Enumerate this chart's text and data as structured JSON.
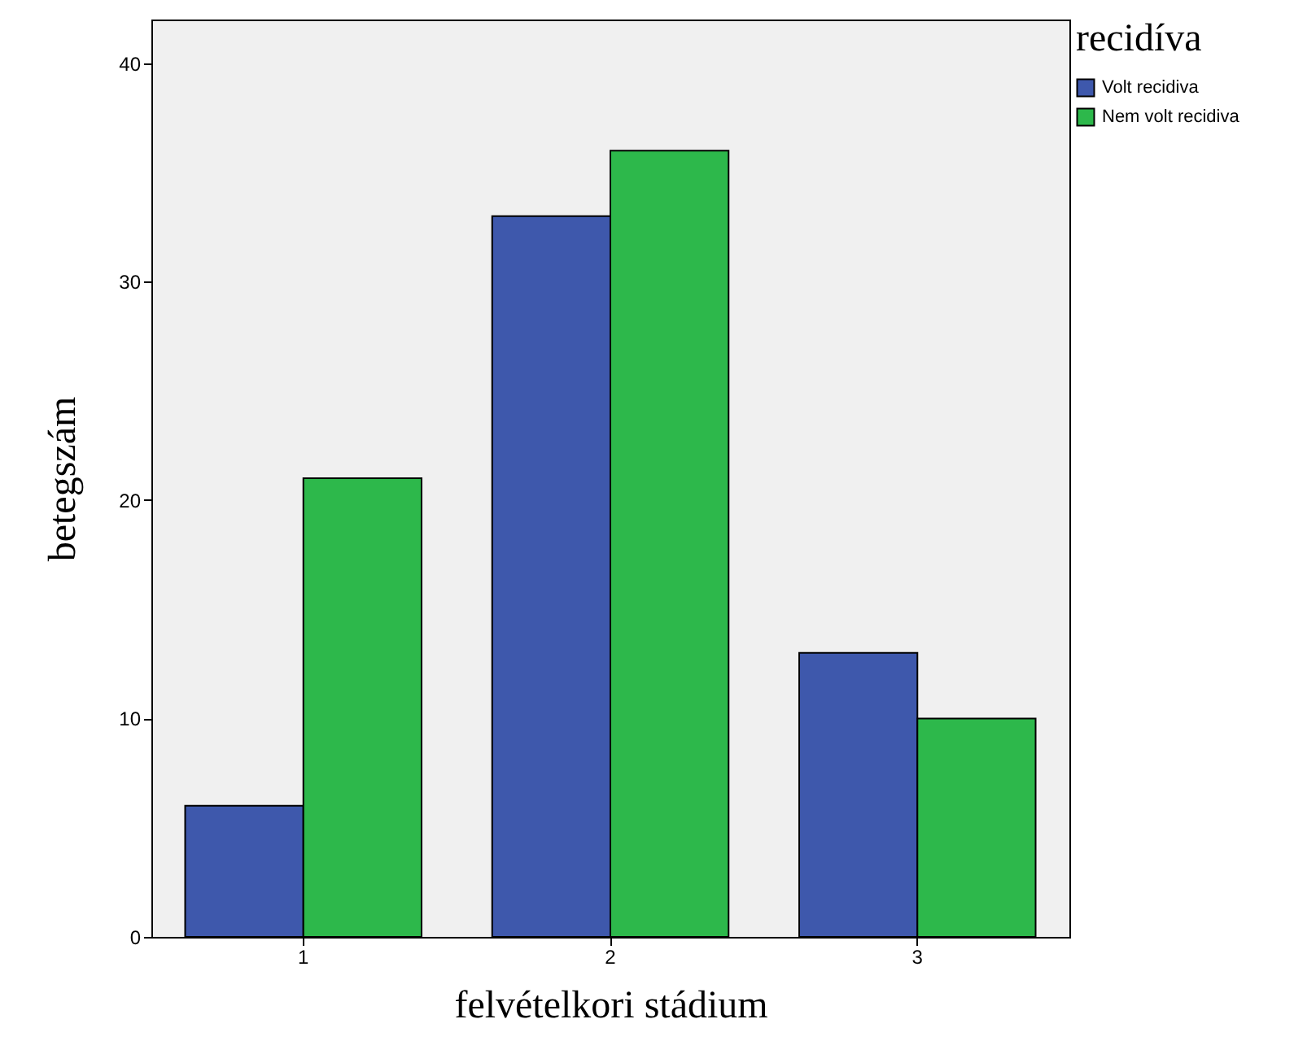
{
  "chart_data": {
    "type": "bar",
    "xlabel": "felvételkori stádium",
    "ylabel": "betegszám",
    "legend_title": "recidíva",
    "categories": [
      "1",
      "2",
      "3"
    ],
    "series": [
      {
        "name": "Volt recidiva",
        "color": "#3e58ac",
        "values": [
          6,
          33,
          13
        ]
      },
      {
        "name": "Nem volt recidiva",
        "color": "#2db84b",
        "values": [
          21,
          36,
          10
        ]
      }
    ],
    "ylim": [
      0,
      42
    ],
    "yticks": [
      0,
      10,
      20,
      30,
      40
    ],
    "grid": false,
    "legend": "top right"
  }
}
